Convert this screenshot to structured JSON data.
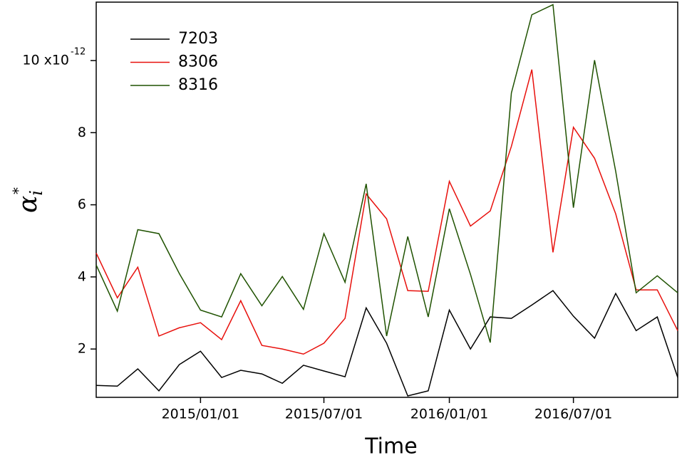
{
  "chart_data": {
    "type": "line",
    "x_label": "Time",
    "y_label": "α",
    "y_label_sub": "i",
    "y_label_sup": "*",
    "y_exponent": "-12",
    "x": [
      "2014/08/01",
      "2014/09/01",
      "2014/10/01",
      "2014/11/01",
      "2014/12/01",
      "2015/01/01",
      "2015/02/01",
      "2015/03/01",
      "2015/04/01",
      "2015/05/01",
      "2015/06/01",
      "2015/07/01",
      "2015/08/01",
      "2015/09/01",
      "2015/10/01",
      "2015/11/01",
      "2015/12/01",
      "2016/01/01",
      "2016/02/01",
      "2016/03/01",
      "2016/04/01",
      "2016/05/01",
      "2016/06/01",
      "2016/07/01",
      "2016/08/01",
      "2016/09/01",
      "2016/10/01",
      "2016/11/01",
      "2016/12/01"
    ],
    "series": [
      {
        "name": "7203",
        "color": "#000000",
        "values": [
          0.99,
          0.97,
          1.45,
          0.84,
          1.57,
          1.94,
          1.21,
          1.41,
          1.31,
          1.05,
          1.55,
          1.39,
          1.23,
          3.14,
          2.16,
          0.7,
          0.84,
          3.08,
          2.0,
          2.89,
          2.85,
          3.22,
          3.62,
          2.91,
          2.3,
          3.54,
          2.51,
          2.89,
          1.21
        ]
      },
      {
        "name": "8306",
        "color": "#e8100c",
        "values": [
          4.66,
          3.42,
          4.27,
          2.36,
          2.59,
          2.73,
          2.26,
          3.34,
          2.1,
          2.0,
          1.86,
          2.16,
          2.85,
          6.3,
          5.61,
          3.62,
          3.6,
          6.65,
          5.41,
          5.83,
          7.62,
          9.75,
          4.68,
          8.15,
          7.29,
          5.75,
          3.64,
          3.64,
          2.51
        ]
      },
      {
        "name": "8316",
        "color": "#1f5200",
        "values": [
          4.33,
          3.05,
          5.31,
          5.2,
          4.09,
          3.08,
          2.89,
          4.09,
          3.2,
          4.01,
          3.1,
          5.2,
          3.85,
          6.58,
          2.36,
          5.12,
          2.89,
          5.89,
          4.07,
          2.18,
          9.1,
          11.27,
          11.55,
          5.92,
          10.01,
          6.93,
          3.56,
          4.03,
          3.56
        ]
      }
    ],
    "xlim": [
      "2014/08/01",
      "2016/12/01"
    ],
    "xticks": [
      "2015/01/01",
      "2015/07/01",
      "2016/01/01",
      "2016/07/01"
    ],
    "ylim": [
      0.66,
      11.62
    ],
    "yticks": [
      2,
      4,
      6,
      8,
      {
        "value": 10,
        "label": "10 x10"
      }
    ],
    "legend": "upper left"
  }
}
